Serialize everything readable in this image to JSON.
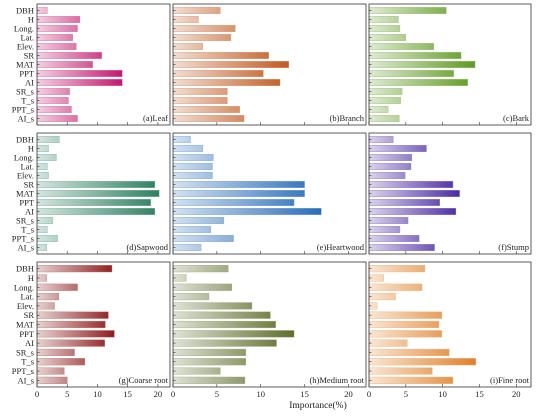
{
  "xlabel": "Importance(%)",
  "chart_data": [
    {
      "type": "bar",
      "title": "(a)Leaf",
      "categories": [
        "DBH",
        "H",
        "Long.",
        "Lat.",
        "Elev.",
        "SR",
        "MAT",
        "PPT",
        "AI",
        "SR_s",
        "T_s",
        "PPT_s",
        "AI_s"
      ],
      "values": [
        1.7,
        7.1,
        6.7,
        5.9,
        6.5,
        10.7,
        9.2,
        14.1,
        14.1,
        5.4,
        5.2,
        5.7,
        6.7
      ],
      "xlim": [
        0,
        22
      ],
      "xticks": [
        0,
        5,
        10,
        15,
        20
      ],
      "palette": "#c2186e"
    },
    {
      "type": "bar",
      "title": "(b)Branch",
      "categories": [
        "DBH",
        "H",
        "Long.",
        "Lat.",
        "Elev.",
        "SR",
        "MAT",
        "PPT",
        "AI",
        "SR_s",
        "T_s",
        "PPT_s",
        "AI_s"
      ],
      "values": [
        5.4,
        2.9,
        7.1,
        6.6,
        3.4,
        10.9,
        13.2,
        10.3,
        12.2,
        6.2,
        6.2,
        7.6,
        8.1
      ],
      "xlim": [
        0,
        22
      ],
      "xticks": [
        0,
        5,
        10,
        15,
        20
      ],
      "palette": "#c05a22"
    },
    {
      "type": "bar",
      "title": "(c)Bark",
      "categories": [
        "DBH",
        "H",
        "Long.",
        "Lat.",
        "Elev.",
        "SR",
        "MAT",
        "PPT",
        "AI",
        "SR_s",
        "T_s",
        "PPT_s",
        "AI_s"
      ],
      "values": [
        10.5,
        4.0,
        4.2,
        5.0,
        8.8,
        12.5,
        14.4,
        11.5,
        13.4,
        4.5,
        4.3,
        2.6,
        4.1
      ],
      "xlim": [
        0,
        22
      ],
      "xticks": [
        0,
        5,
        10,
        15,
        20
      ],
      "palette": "#5f9a22"
    },
    {
      "type": "bar",
      "title": "(d)Sapwood",
      "categories": [
        "DBH",
        "H",
        "Long.",
        "Lat.",
        "Elev.",
        "SR",
        "MAT",
        "PPT",
        "AI",
        "SR_s",
        "T_s",
        "PPT_s",
        "AI_s"
      ],
      "values": [
        3.7,
        1.9,
        3.2,
        1.7,
        1.9,
        19.5,
        20.2,
        18.8,
        19.5,
        2.6,
        1.7,
        3.4,
        1.6
      ],
      "xlim": [
        0,
        22
      ],
      "xticks": [
        0,
        5,
        10,
        15,
        20
      ],
      "palette": "#2c8060"
    },
    {
      "type": "bar",
      "title": "(e)Heartwood",
      "categories": [
        "DBH",
        "H",
        "Long.",
        "Lat.",
        "Elev.",
        "SR",
        "MAT",
        "PPT",
        "AI",
        "SR_s",
        "T_s",
        "PPT_s",
        "AI_s"
      ],
      "values": [
        2.0,
        3.4,
        4.6,
        4.5,
        4.5,
        15.0,
        15.0,
        13.8,
        16.9,
        5.8,
        4.3,
        6.9,
        3.2
      ],
      "xlim": [
        0,
        22
      ],
      "xticks": [
        0,
        5,
        10,
        15,
        20
      ],
      "palette": "#2a6cb8"
    },
    {
      "type": "bar",
      "title": "(f)Stump",
      "categories": [
        "DBH",
        "H",
        "Long.",
        "Lat.",
        "Elev.",
        "SR",
        "MAT",
        "PPT",
        "AI",
        "SR_s",
        "T_s",
        "PPT_s",
        "AI_s"
      ],
      "values": [
        3.3,
        7.8,
        5.8,
        5.7,
        4.9,
        11.4,
        12.3,
        9.6,
        11.8,
        5.3,
        4.2,
        6.8,
        8.9
      ],
      "xlim": [
        0,
        22
      ],
      "xticks": [
        0,
        5,
        10,
        15,
        20
      ],
      "palette": "#4a2aa2"
    },
    {
      "type": "bar",
      "title": "(g)Coarse root",
      "categories": [
        "DBH",
        "H",
        "Long.",
        "Lat.",
        "Elev.",
        "SR",
        "MAT",
        "PPT",
        "AI",
        "SR_s",
        "T_s",
        "PPT_s",
        "AI_s"
      ],
      "values": [
        12.4,
        1.6,
        6.7,
        3.6,
        2.9,
        11.8,
        11.3,
        12.8,
        11.2,
        6.2,
        7.9,
        4.5,
        5.0
      ],
      "xlim": [
        0,
        22
      ],
      "xticks": [
        0,
        5,
        10,
        15,
        20
      ],
      "palette": "#8e1c1c"
    },
    {
      "type": "bar",
      "title": "(h)Medium root",
      "categories": [
        "DBH",
        "H",
        "Long.",
        "Lat.",
        "Elev.",
        "SR",
        "MAT",
        "PPT",
        "AI",
        "SR_s",
        "T_s",
        "PPT_s",
        "AI_s"
      ],
      "values": [
        6.3,
        1.5,
        6.7,
        4.1,
        9.0,
        11.1,
        11.7,
        13.8,
        11.8,
        8.3,
        8.3,
        5.4,
        8.2
      ],
      "xlim": [
        0,
        22
      ],
      "xticks": [
        0,
        5,
        10,
        15,
        20
      ],
      "palette": "#5e6e2c"
    },
    {
      "type": "bar",
      "title": "(i)Fine root",
      "categories": [
        "DBH",
        "H",
        "Long.",
        "Lat.",
        "Elev.",
        "SR",
        "MAT",
        "PPT",
        "AI",
        "SR_s",
        "T_s",
        "PPT_s",
        "AI_s"
      ],
      "values": [
        7.6,
        2.0,
        7.2,
        3.6,
        1.1,
        9.9,
        9.5,
        9.9,
        5.2,
        10.9,
        14.5,
        8.6,
        11.4
      ],
      "xlim": [
        0,
        22
      ],
      "xticks": [
        0,
        5,
        10,
        15,
        20
      ],
      "palette": "#e0802a"
    }
  ]
}
